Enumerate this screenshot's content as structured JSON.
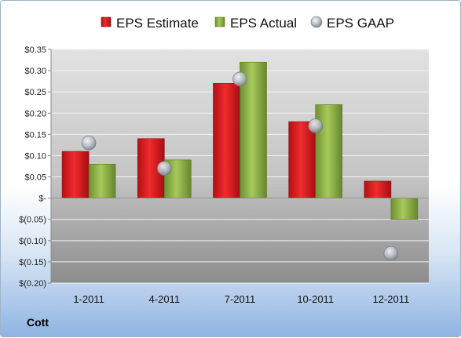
{
  "company": "Cott",
  "chart_data": {
    "type": "bar",
    "categories": [
      "1-2011",
      "4-2011",
      "7-2011",
      "10-2011",
      "12-2011"
    ],
    "series": [
      {
        "name": "EPS Estimate",
        "values": [
          0.11,
          0.14,
          0.27,
          0.18,
          0.04
        ],
        "color": "#d9141b",
        "mark": "bar"
      },
      {
        "name": "EPS Actual",
        "values": [
          0.08,
          0.09,
          0.32,
          0.22,
          -0.05
        ],
        "color": "#8db341",
        "mark": "bar"
      },
      {
        "name": "EPS GAAP",
        "values": [
          0.13,
          0.07,
          0.28,
          0.17,
          -0.13
        ],
        "color": "#b0b6bd",
        "mark": "circle"
      }
    ],
    "ylim": [
      -0.2,
      0.35
    ],
    "yticks": [
      0.35,
      0.3,
      0.25,
      0.2,
      0.15,
      0.1,
      0.05,
      0,
      -0.05,
      -0.1,
      -0.15,
      -0.2
    ],
    "ytick_labels": [
      "$0.35",
      "$0.30",
      "$0.25",
      "$0.20",
      "$0.15",
      "$0.10",
      "$0.05",
      "$-",
      "$(0.05)",
      "$(0.10)",
      "$(0.15)",
      "$(0.20)"
    ],
    "grid": true,
    "legend": "top"
  }
}
